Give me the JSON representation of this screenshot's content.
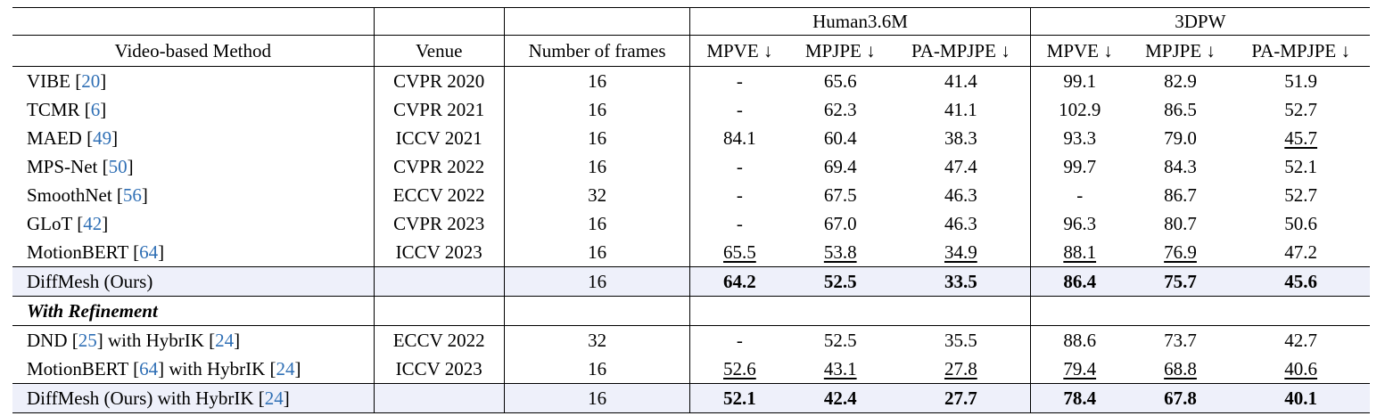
{
  "header": {
    "group_human": "Human3.6M",
    "group_3dpw": "3DPW",
    "col_method": "Video-based Method",
    "col_venue": "Venue",
    "col_frames": "Number of frames",
    "metrics": [
      "MPVE ↓",
      "MPJPE ↓",
      "PA-MPJPE ↓",
      "MPVE ↓",
      "MPJPE ↓",
      "PA-MPJPE ↓"
    ]
  },
  "rows": [
    {
      "name": "VIBE",
      "cite": "20",
      "venue": "CVPR 2020",
      "frames": "16",
      "vals": [
        "-",
        "65.6",
        "41.4",
        "99.1",
        "82.9",
        "51.9"
      ]
    },
    {
      "name": "TCMR",
      "cite": "6",
      "venue": "CVPR 2021",
      "frames": "16",
      "vals": [
        "-",
        "62.3",
        "41.1",
        "102.9",
        "86.5",
        "52.7"
      ]
    },
    {
      "name": "MAED",
      "cite": "49",
      "venue": "ICCV 2021",
      "frames": "16",
      "vals": [
        "84.1",
        "60.4",
        "38.3",
        "93.3",
        "79.0",
        "45.7"
      ]
    },
    {
      "name": "MPS-Net",
      "cite": "50",
      "venue": "CVPR 2022",
      "frames": "16",
      "vals": [
        "-",
        "69.4",
        "47.4",
        "99.7",
        "84.3",
        "52.1"
      ]
    },
    {
      "name": "SmoothNet",
      "cite": "56",
      "venue": "ECCV 2022",
      "frames": "32",
      "vals": [
        "-",
        "67.5",
        "46.3",
        "-",
        "86.7",
        "52.7"
      ]
    },
    {
      "name": "GLoT",
      "cite": "42",
      "venue": "CVPR 2023",
      "frames": "16",
      "vals": [
        "-",
        "67.0",
        "46.3",
        "96.3",
        "80.7",
        "50.6"
      ]
    },
    {
      "name": "MotionBERT",
      "cite": "64",
      "venue": "ICCV 2023",
      "frames": "16",
      "vals": [
        "65.5",
        "53.8",
        "34.9",
        "88.1",
        "76.9",
        "47.2"
      ]
    },
    {
      "name": "DiffMesh (Ours)",
      "venue": "",
      "frames": "16",
      "vals": [
        "64.2",
        "52.5",
        "33.5",
        "86.4",
        "75.7",
        "45.6"
      ]
    }
  ],
  "section_label": "With Refinement",
  "refine_rows": [
    {
      "name": "DND",
      "cite": "25",
      "mid": "with HybrIK",
      "cite2": "24",
      "venue": "ECCV 2022",
      "frames": "32",
      "vals": [
        "-",
        "52.5",
        "35.5",
        "88.6",
        "73.7",
        "42.7"
      ]
    },
    {
      "name": "MotionBERT",
      "cite": "64",
      "mid": "with HybrIK",
      "cite2": "24",
      "venue": "ICCV 2023",
      "frames": "16",
      "vals": [
        "52.6",
        "43.1",
        "27.8",
        "79.4",
        "68.8",
        "40.6"
      ]
    },
    {
      "name": "DiffMesh (Ours) with HybrIK",
      "cite": "24",
      "venue": "",
      "frames": "16",
      "vals": [
        "52.1",
        "42.4",
        "27.7",
        "78.4",
        "67.8",
        "40.1"
      ]
    }
  ]
}
